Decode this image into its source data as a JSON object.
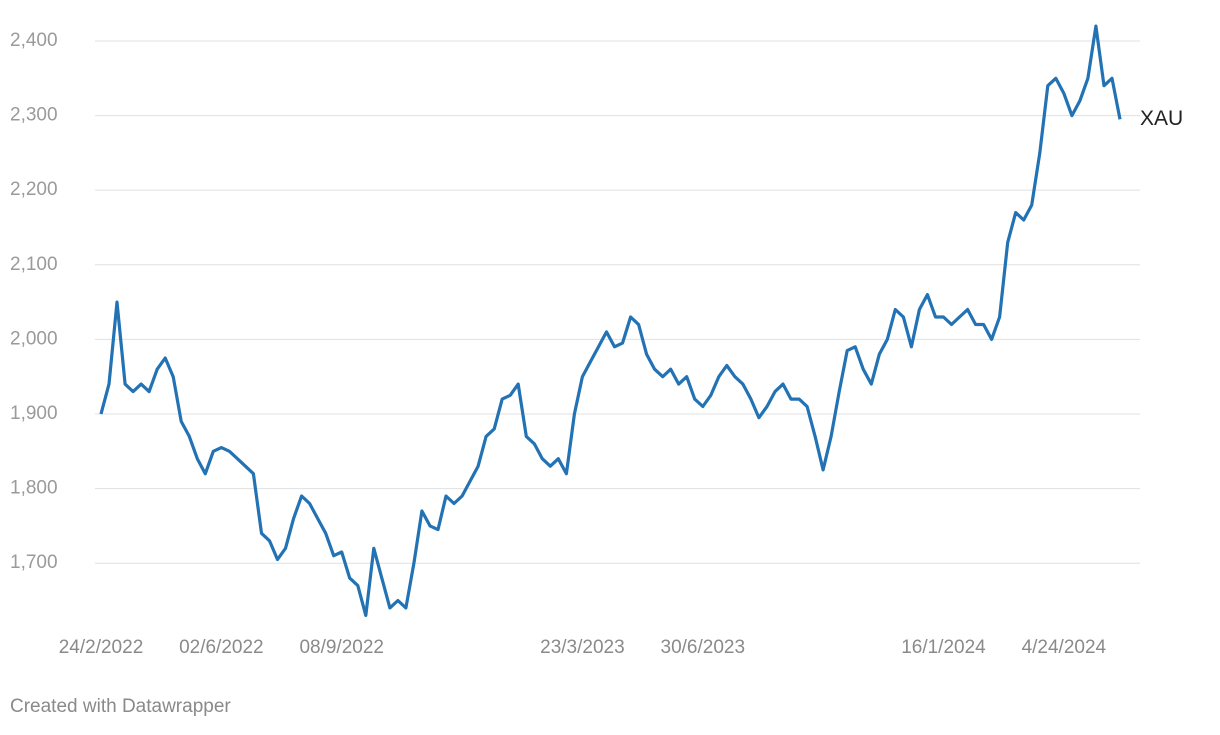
{
  "chart_data": {
    "type": "line",
    "categories": [
      "24/2/2022",
      null,
      null,
      null,
      null,
      null,
      null,
      null,
      null,
      null,
      null,
      null,
      null,
      null,
      null,
      "02/6/2022",
      null,
      null,
      null,
      null,
      null,
      null,
      null,
      null,
      null,
      null,
      null,
      null,
      null,
      null,
      "08/9/2022",
      null,
      null,
      null,
      null,
      null,
      null,
      null,
      null,
      null,
      null,
      null,
      null,
      null,
      null,
      null,
      null,
      null,
      null,
      null,
      null,
      null,
      null,
      null,
      null,
      null,
      null,
      null,
      null,
      null,
      "23/3/2023",
      null,
      null,
      null,
      null,
      null,
      null,
      null,
      null,
      null,
      null,
      null,
      null,
      null,
      null,
      "30/6/2023",
      null,
      null,
      null,
      null,
      null,
      null,
      null,
      null,
      null,
      null,
      null,
      null,
      null,
      null,
      null,
      null,
      null,
      null,
      null,
      null,
      null,
      null,
      null,
      null,
      null,
      null,
      null,
      null,
      null,
      "16/1/2024",
      null,
      null,
      null,
      null,
      null,
      null,
      null,
      null,
      null,
      null,
      null,
      null,
      null,
      null,
      "4/24/2024",
      null,
      null,
      null,
      null,
      null,
      null,
      null
    ],
    "series": [
      {
        "name": "XAU",
        "color": "#2272b4",
        "values": [
          1900,
          1940,
          2050,
          1940,
          1930,
          1940,
          1930,
          1960,
          1975,
          1950,
          1890,
          1870,
          1840,
          1820,
          1850,
          1855,
          1850,
          1840,
          1830,
          1820,
          1740,
          1730,
          1705,
          1720,
          1760,
          1790,
          1780,
          1760,
          1740,
          1710,
          1715,
          1680,
          1670,
          1630,
          1720,
          1680,
          1640,
          1650,
          1640,
          1700,
          1770,
          1750,
          1745,
          1790,
          1780,
          1790,
          1810,
          1830,
          1870,
          1880,
          1920,
          1925,
          1940,
          1870,
          1860,
          1840,
          1830,
          1840,
          1820,
          1900,
          1950,
          1970,
          1990,
          2010,
          1990,
          1995,
          2030,
          2020,
          1980,
          1960,
          1950,
          1960,
          1940,
          1950,
          1920,
          1910,
          1925,
          1950,
          1965,
          1950,
          1940,
          1920,
          1895,
          1910,
          1930,
          1940,
          1920,
          1920,
          1910,
          1870,
          1825,
          1870,
          1930,
          1985,
          1990,
          1960,
          1940,
          1980,
          2000,
          2040,
          2030,
          1990,
          2040,
          2060,
          2030,
          2030,
          2020,
          2030,
          2040,
          2020,
          2020,
          2000,
          2030,
          2130,
          2170,
          2160,
          2180,
          2250,
          2340,
          2350,
          2330,
          2300,
          2320,
          2350,
          2420,
          2340,
          2350,
          2295
        ]
      }
    ],
    "ylim": [
      1615,
      2430
    ],
    "yticks": [
      {
        "value": 1700,
        "label": "1,700"
      },
      {
        "value": 1800,
        "label": "1,800"
      },
      {
        "value": 1900,
        "label": "1,900"
      },
      {
        "value": 2000,
        "label": "2,000"
      },
      {
        "value": 2100,
        "label": "2,100"
      },
      {
        "value": 2200,
        "label": "2,200"
      },
      {
        "value": 2300,
        "label": "2,300"
      },
      {
        "value": 2400,
        "label": "2,400"
      }
    ],
    "grid": true
  },
  "footer": "Created with Datawrapper"
}
